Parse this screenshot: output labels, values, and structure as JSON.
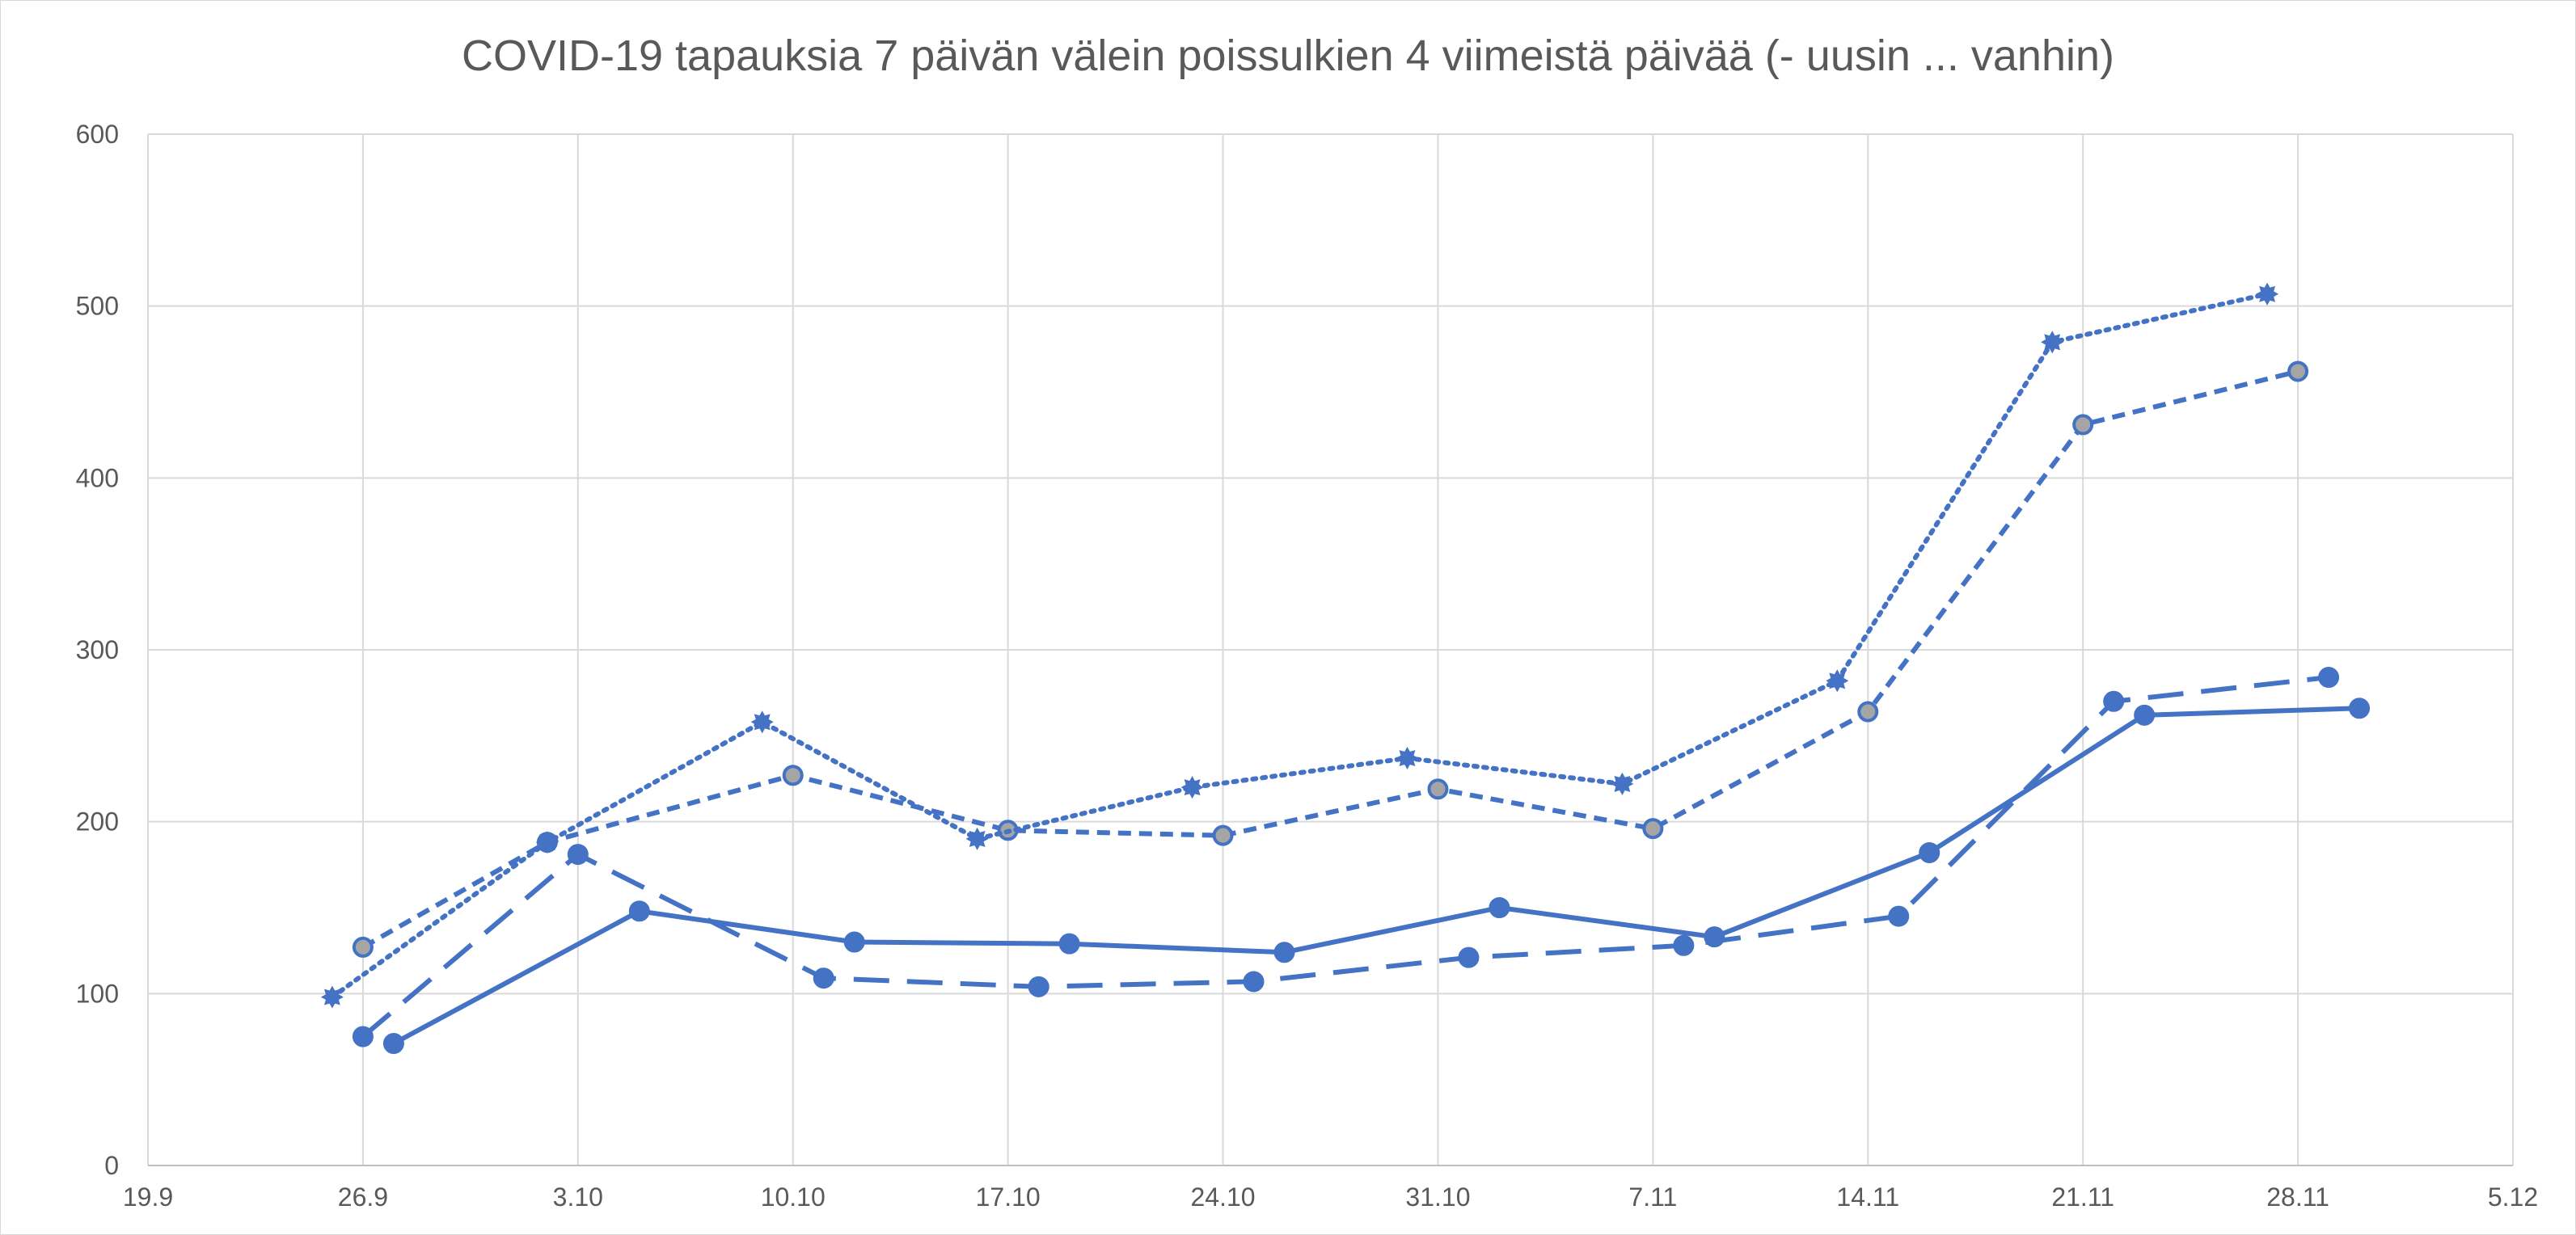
{
  "chart_data": {
    "type": "line",
    "title": "COVID-19 tapauksia 7 päivän välein poissulkien 4 viimeistä päivää (- uusin ... vanhin)",
    "xlabel": "",
    "ylabel": "",
    "x_axis": {
      "kind": "date",
      "year": 2020,
      "range": [
        "2020-09-19",
        "2020-12-05"
      ],
      "tick_labels": [
        "19.9",
        "26.9",
        "3.10",
        "10.10",
        "17.10",
        "24.10",
        "31.10",
        "7.11",
        "14.11",
        "21.11",
        "28.11",
        "5.12"
      ]
    },
    "y_axis": {
      "range": [
        0,
        600
      ],
      "tick_labels": [
        "0",
        "100",
        "200",
        "300",
        "400",
        "500",
        "600"
      ]
    },
    "grid": true,
    "legend": "none",
    "color": "#4472c4",
    "series": [
      {
        "style": "solid",
        "marker": "circle",
        "x": [
          "2020-09-27",
          "2020-10-05",
          "2020-10-12",
          "2020-10-19",
          "2020-10-26",
          "2020-11-02",
          "2020-11-09",
          "2020-11-16",
          "2020-11-23",
          "2020-11-30"
        ],
        "values": [
          71,
          148,
          130,
          129,
          124,
          150,
          133,
          182,
          262,
          266
        ]
      },
      {
        "style": "long-dash",
        "marker": "circle",
        "x": [
          "2020-09-26",
          "2020-10-03",
          "2020-10-11",
          "2020-10-18",
          "2020-10-25",
          "2020-11-01",
          "2020-11-08",
          "2020-11-15",
          "2020-11-22",
          "2020-11-29"
        ],
        "values": [
          75,
          181,
          109,
          104,
          107,
          121,
          128,
          145,
          270,
          284
        ]
      },
      {
        "style": "short-dash",
        "marker": "grey-filled circle",
        "x": [
          "2020-09-26",
          "2020-10-02",
          "2020-10-10",
          "2020-10-17",
          "2020-10-24",
          "2020-10-31",
          "2020-11-07",
          "2020-11-14",
          "2020-11-21",
          "2020-11-28"
        ],
        "values": [
          127,
          188,
          227,
          195,
          192,
          219,
          196,
          264,
          431,
          462
        ]
      },
      {
        "style": "dotted",
        "marker": "star",
        "x": [
          "2020-09-25",
          "2020-10-02",
          "2020-10-09",
          "2020-10-16",
          "2020-10-23",
          "2020-10-30",
          "2020-11-06",
          "2020-11-13",
          "2020-11-20",
          "2020-11-27"
        ],
        "values": [
          98,
          188,
          258,
          190,
          220,
          237,
          222,
          282,
          479,
          507
        ]
      }
    ]
  }
}
